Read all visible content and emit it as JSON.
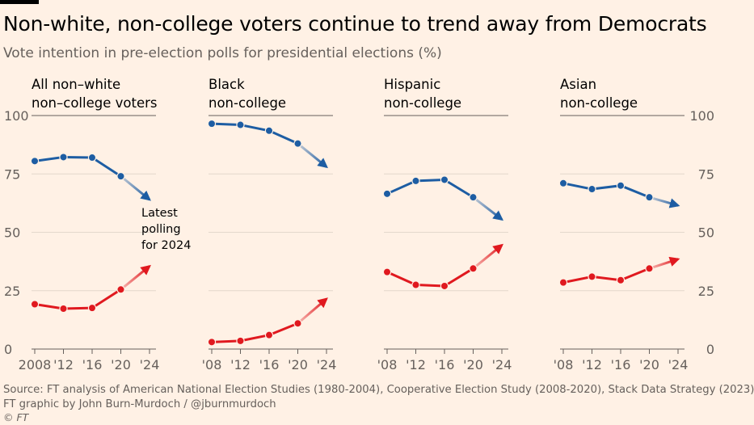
{
  "header": {
    "title": "Non-white, non-college voters continue to trend away from Democrats",
    "subtitle": "Vote intention in pre-election polls for presidential elections (%)"
  },
  "footer": {
    "source": "Source: FT analysis of American National Election Studies (1980-2004), Cooperative Election Study (2008-2020), Stack Data Strategy (2023)",
    "credit": "FT graphic by John Burn-Murdoch / @jburnmurdoch",
    "copyright": "© FT"
  },
  "colors": {
    "background": "#fff1e5",
    "democrat": "#1d5da3",
    "republican": "#e0191f",
    "gridline": "#e4d8cc",
    "axis": "#66605c"
  },
  "chart_data": [
    {
      "type": "line",
      "title": "All non–white non–college voters",
      "title_lines": [
        "All non–white",
        "non–college voters"
      ],
      "x": [
        2008,
        2012,
        2016,
        2020
      ],
      "projection_x": 2024,
      "tick_labels": [
        "2008",
        "'12",
        "'16",
        "'20",
        "'24"
      ],
      "ylim": [
        0,
        100
      ],
      "y_ticks": [
        0,
        25,
        50,
        75,
        100
      ],
      "series": [
        {
          "color": "#1d5da3",
          "values": [
            80.5,
            82.2,
            82.0,
            74.0
          ],
          "projection": 64.0
        },
        {
          "color": "#e0191f",
          "values": [
            19.2,
            17.3,
            17.6,
            25.5
          ],
          "projection": 35.5
        }
      ],
      "annotation": [
        "Latest",
        "polling",
        "for 2024"
      ]
    },
    {
      "type": "line",
      "title": "Black non-college",
      "title_lines": [
        "Black",
        "non-college"
      ],
      "x": [
        2008,
        2012,
        2016,
        2020
      ],
      "projection_x": 2024,
      "tick_labels": [
        "'08",
        "'12",
        "'16",
        "'20",
        "'24"
      ],
      "ylim": [
        0,
        100
      ],
      "y_ticks": [
        0,
        25,
        50,
        75,
        100
      ],
      "series": [
        {
          "color": "#1d5da3",
          "values": [
            96.5,
            96.0,
            93.5,
            88.0
          ],
          "projection": 78.0
        },
        {
          "color": "#e0191f",
          "values": [
            3.0,
            3.5,
            6.0,
            11.0
          ],
          "projection": 21.5
        }
      ]
    },
    {
      "type": "line",
      "title": "Hispanic non-college",
      "title_lines": [
        "Hispanic",
        "non-college"
      ],
      "x": [
        2008,
        2012,
        2016,
        2020
      ],
      "projection_x": 2024,
      "tick_labels": [
        "'08",
        "'12",
        "'16",
        "'20",
        "'24"
      ],
      "ylim": [
        0,
        100
      ],
      "y_ticks": [
        0,
        25,
        50,
        75,
        100
      ],
      "series": [
        {
          "color": "#1d5da3",
          "values": [
            66.5,
            72.0,
            72.5,
            65.0
          ],
          "projection": 55.5
        },
        {
          "color": "#e0191f",
          "values": [
            33.0,
            27.5,
            27.0,
            34.5
          ],
          "projection": 44.5
        }
      ]
    },
    {
      "type": "line",
      "title": "Asian non-college",
      "title_lines": [
        "Asian",
        "non-college"
      ],
      "x": [
        2008,
        2012,
        2016,
        2020
      ],
      "projection_x": 2024,
      "tick_labels": [
        "'08",
        "'12",
        "'16",
        "'20",
        "'24"
      ],
      "ylim": [
        0,
        100
      ],
      "y_ticks": [
        0,
        25,
        50,
        75,
        100
      ],
      "series": [
        {
          "color": "#1d5da3",
          "values": [
            71.0,
            68.5,
            70.0,
            65.0
          ],
          "projection": 61.5
        },
        {
          "color": "#e0191f",
          "values": [
            28.5,
            31.0,
            29.5,
            34.5
          ],
          "projection": 38.5
        }
      ]
    }
  ]
}
